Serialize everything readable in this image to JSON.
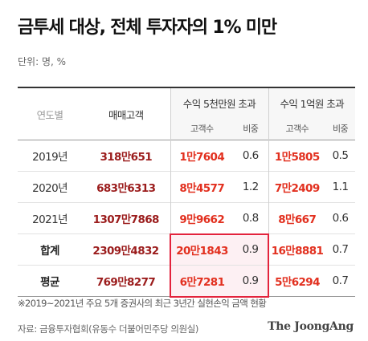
{
  "title": "금투세 대상, 전체 투자자의 1% 미만",
  "unit_label": "단위: 명, %",
  "footnote": "※2019~2021년 주요 5개 증권사의 최근 3년간 실현손익 금액 현황",
  "source": "자료: 금융투자협회(유동수 더불어민주당 의원실)",
  "logo": "The JoongAng",
  "colors": {
    "highlight_border": "#e3233c",
    "highlight_fill": "#fdf0f3",
    "value_red": "#e2301f",
    "customer_dark_red": "#9b1c1c"
  },
  "chart_data": {
    "type": "table",
    "title": "금투세 대상, 전체 투자자의 1% 미만",
    "unit": "단위: 명, %",
    "header": {
      "row_label": "연도별",
      "customers": "매매고객",
      "group_5000": "수익 5천만원 초과",
      "group_1eok": "수익 1억원 초과",
      "sub_count": "고객수",
      "sub_ratio": "비중"
    },
    "rows": [
      {
        "label": "2019년",
        "customers": "318만651",
        "count_5000": "1만7604",
        "ratio_5000": "0.6",
        "count_1eok": "1만5805",
        "ratio_1eok": "0.5"
      },
      {
        "label": "2020년",
        "customers": "683만6313",
        "count_5000": "8만4577",
        "ratio_5000": "1.2",
        "count_1eok": "7만2409",
        "ratio_1eok": "1.1"
      },
      {
        "label": "2021년",
        "customers": "1307만7868",
        "count_5000": "9만9662",
        "ratio_5000": "0.8",
        "count_1eok": "8만667",
        "ratio_1eok": "0.6"
      },
      {
        "label": "합계",
        "customers": "2309만4832",
        "count_5000": "20만1843",
        "ratio_5000": "0.9",
        "count_1eok": "16만8881",
        "ratio_1eok": "0.7"
      },
      {
        "label": "평균",
        "customers": "769만8277",
        "count_5000": "6만7281",
        "ratio_5000": "0.9",
        "count_1eok": "5만6294",
        "ratio_1eok": "0.7"
      }
    ]
  }
}
